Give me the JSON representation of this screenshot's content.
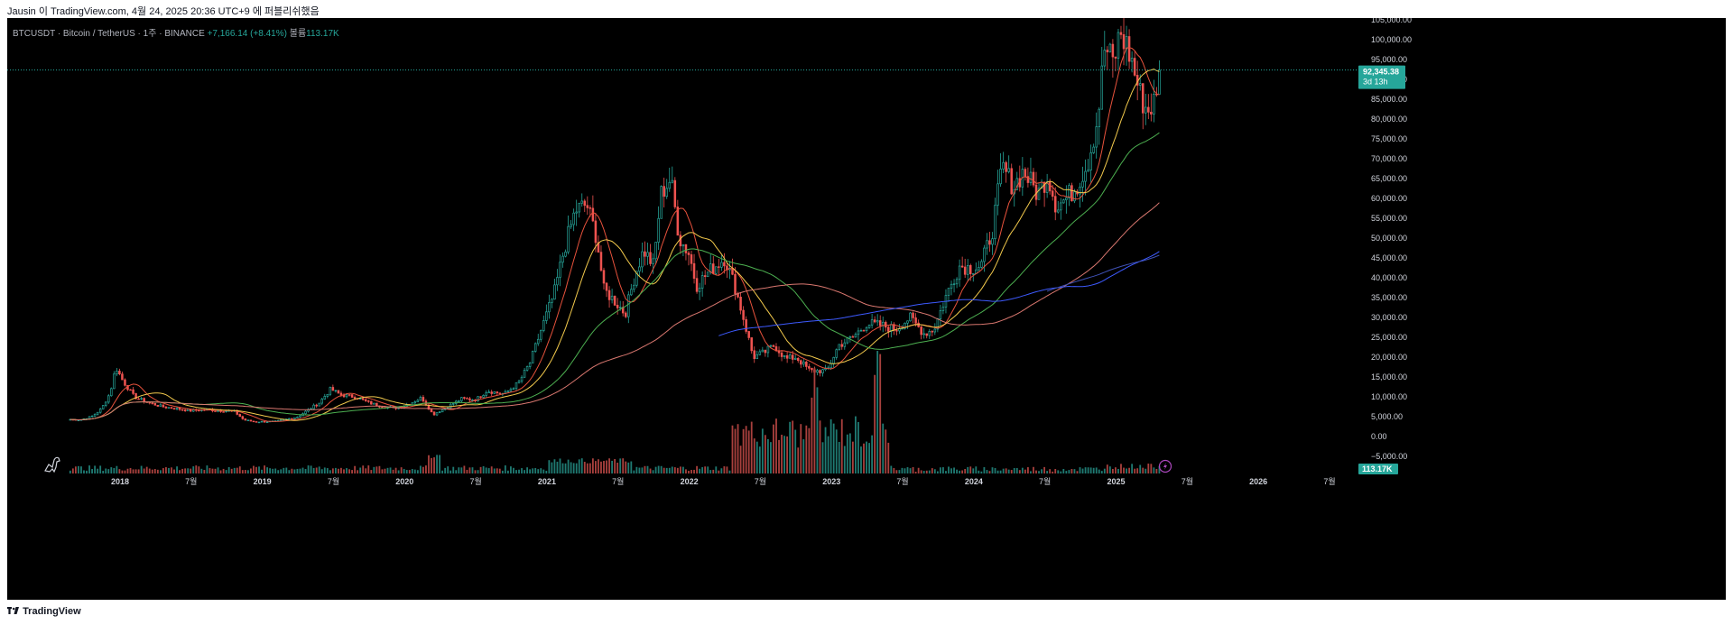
{
  "caption": "Jausin 이 TradingView.com, 4월 24, 2025 20:36 UTC+9 에 퍼블리쉬했음",
  "header": {
    "symbol": "BTCUSDT · Bitcoin / TetherUS · 1주 · BINANCE",
    "change": "+7,166.14 (+8.41%)",
    "volume_label": "볼륨",
    "volume_value": "113.17K"
  },
  "price_badge": {
    "price": "92,345.38",
    "countdown": "3d 13h"
  },
  "volume_badge": "113.17K",
  "brand": "TradingView",
  "colors": {
    "background": "#000000",
    "up": "#26a69a",
    "down": "#ef5350",
    "ma_red": "#e8523c",
    "ma_yellow": "#f2c94c",
    "ma_green": "#4caf50",
    "ma_pink": "#d9776f",
    "ma_blue": "#3d5afe",
    "ma_navy": "#3f51b5"
  },
  "chart_data": {
    "type": "candlestick",
    "title": "BTCUSDT · Bitcoin / TetherUS · 1주 · BINANCE",
    "x_tick_labels": [
      "2018",
      "7월",
      "2019",
      "7월",
      "2020",
      "7월",
      "2021",
      "7월",
      "2022",
      "7월",
      "2023",
      "7월",
      "2024",
      "7월",
      "2025",
      "7월",
      "2026",
      "7월"
    ],
    "x_tick_years": [
      2018.0,
      2018.5,
      2019.0,
      2019.5,
      2020.0,
      2020.5,
      2021.0,
      2021.5,
      2022.0,
      2022.5,
      2023.0,
      2023.5,
      2024.0,
      2024.5,
      2025.0,
      2025.5,
      2026.0,
      2026.5
    ],
    "y_tick_labels": [
      "105,000.00",
      "100,000.00",
      "95,000.00",
      "90,000.00",
      "85,000.00",
      "80,000.00",
      "75,000.00",
      "70,000.00",
      "65,000.00",
      "60,000.00",
      "55,000.00",
      "50,000.00",
      "45,000.00",
      "40,000.00",
      "35,000.00",
      "30,000.00",
      "25,000.00",
      "20,000.00",
      "15,000.00",
      "10,000.00",
      "5,000.00",
      "0.00",
      "−5,000.00"
    ],
    "y_tick_values": [
      105000,
      100000,
      95000,
      90000,
      85000,
      80000,
      75000,
      70000,
      65000,
      60000,
      55000,
      50000,
      45000,
      40000,
      35000,
      30000,
      25000,
      20000,
      15000,
      10000,
      5000,
      0,
      -5000
    ],
    "ylim": [
      -5000,
      105000
    ],
    "last_price": 92345.38,
    "price_path": [
      [
        2017.65,
        4300
      ],
      [
        2017.72,
        4200
      ],
      [
        2017.8,
        5000
      ],
      [
        2017.87,
        7000
      ],
      [
        2017.93,
        11000
      ],
      [
        2017.97,
        17500
      ],
      [
        2018.02,
        14000
      ],
      [
        2018.1,
        10000
      ],
      [
        2018.2,
        8500
      ],
      [
        2018.3,
        7500
      ],
      [
        2018.4,
        7000
      ],
      [
        2018.5,
        6500
      ],
      [
        2018.6,
        6800
      ],
      [
        2018.7,
        6500
      ],
      [
        2018.8,
        6400
      ],
      [
        2018.87,
        4200
      ],
      [
        2018.95,
        3700
      ],
      [
        2019.1,
        3800
      ],
      [
        2019.25,
        5000
      ],
      [
        2019.4,
        8500
      ],
      [
        2019.48,
        12000
      ],
      [
        2019.55,
        10500
      ],
      [
        2019.65,
        10000
      ],
      [
        2019.75,
        8500
      ],
      [
        2019.85,
        7500
      ],
      [
        2019.95,
        7200
      ],
      [
        2020.05,
        8500
      ],
      [
        2020.12,
        9800
      ],
      [
        2020.2,
        5500
      ],
      [
        2020.3,
        7500
      ],
      [
        2020.4,
        9500
      ],
      [
        2020.5,
        9300
      ],
      [
        2020.58,
        11500
      ],
      [
        2020.7,
        10700
      ],
      [
        2020.8,
        13500
      ],
      [
        2020.88,
        18500
      ],
      [
        2020.97,
        28000
      ],
      [
        2021.05,
        36000
      ],
      [
        2021.12,
        47000
      ],
      [
        2021.2,
        57000
      ],
      [
        2021.28,
        58500
      ],
      [
        2021.35,
        50000
      ],
      [
        2021.4,
        37000
      ],
      [
        2021.48,
        34000
      ],
      [
        2021.55,
        31000
      ],
      [
        2021.62,
        41000
      ],
      [
        2021.68,
        47000
      ],
      [
        2021.75,
        43000
      ],
      [
        2021.8,
        61000
      ],
      [
        2021.87,
        65000
      ],
      [
        2021.93,
        50000
      ],
      [
        2022.0,
        46000
      ],
      [
        2022.05,
        38000
      ],
      [
        2022.15,
        42000
      ],
      [
        2022.25,
        45000
      ],
      [
        2022.32,
        38000
      ],
      [
        2022.38,
        30000
      ],
      [
        2022.45,
        20000
      ],
      [
        2022.52,
        21000
      ],
      [
        2022.6,
        23000
      ],
      [
        2022.68,
        19500
      ],
      [
        2022.75,
        20000
      ],
      [
        2022.85,
        16500
      ],
      [
        2022.97,
        16600
      ],
      [
        2023.05,
        23000
      ],
      [
        2023.15,
        25000
      ],
      [
        2023.25,
        28500
      ],
      [
        2023.35,
        28000
      ],
      [
        2023.45,
        27000
      ],
      [
        2023.55,
        30000
      ],
      [
        2023.65,
        26000
      ],
      [
        2023.72,
        27000
      ],
      [
        2023.8,
        35000
      ],
      [
        2023.9,
        43000
      ],
      [
        2023.98,
        42500
      ],
      [
        2024.05,
        43000
      ],
      [
        2024.13,
        52000
      ],
      [
        2024.2,
        68000
      ],
      [
        2024.28,
        63000
      ],
      [
        2024.35,
        67000
      ],
      [
        2024.45,
        61000
      ],
      [
        2024.52,
        66000
      ],
      [
        2024.58,
        58000
      ],
      [
        2024.65,
        60000
      ],
      [
        2024.72,
        63000
      ],
      [
        2024.8,
        69000
      ],
      [
        2024.87,
        80000
      ],
      [
        2024.92,
        98000
      ],
      [
        2024.98,
        94000
      ],
      [
        2025.03,
        102000
      ],
      [
        2025.1,
        96000
      ],
      [
        2025.17,
        86000
      ],
      [
        2025.22,
        82000
      ],
      [
        2025.26,
        84000
      ],
      [
        2025.3,
        85200
      ],
      [
        2025.31,
        92345
      ]
    ],
    "series": [
      {
        "color": "#e8523c",
        "smoothing": 10
      },
      {
        "color": "#f2c94c",
        "smoothing": 20
      },
      {
        "color": "#4caf50",
        "smoothing": 50
      },
      {
        "color": "#d9776f",
        "smoothing": 100
      },
      {
        "color": "#3d5afe",
        "smoothing": 150,
        "start": 2022.2
      },
      {
        "color": "#3f51b5",
        "smoothing": 200,
        "start": 2024.5
      }
    ],
    "volume": {
      "axis_value_label": "113.17K",
      "last_value": 113170
    },
    "legend": "none",
    "grid": false
  }
}
